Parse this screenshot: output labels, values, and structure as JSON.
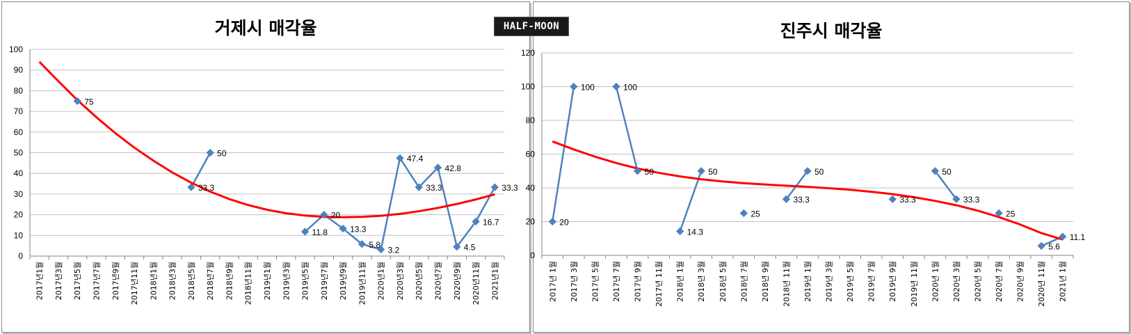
{
  "watermark": "HALF-MOON",
  "colors": {
    "series": "#4f81bd",
    "trend": "#ff0000",
    "grid": "#c0c0c0",
    "axis": "#808080"
  },
  "chart_data": [
    {
      "type": "line",
      "title": "거제시 매각율",
      "ylim": [
        0,
        100
      ],
      "yticks": [
        0,
        10,
        20,
        30,
        40,
        50,
        60,
        70,
        80,
        90,
        100
      ],
      "grid": true,
      "categories": [
        "2017년1월",
        "2017년3월",
        "2017년5월",
        "2017년7월",
        "2017년9월",
        "2017년11월",
        "2018년1월",
        "2018년3월",
        "2018년5월",
        "2018년7월",
        "2018년9월",
        "2018년11월",
        "2019년1월",
        "2019년3월",
        "2019년5월",
        "2019년7월",
        "2019년9월",
        "2019년11월",
        "2020년1월",
        "2020년3월",
        "2020년5월",
        "2020년7월",
        "2020년9월",
        "2020년11월",
        "2021년1월"
      ],
      "series": [
        {
          "values": [
            null,
            null,
            75,
            null,
            null,
            null,
            null,
            null,
            33.3,
            50,
            null,
            null,
            null,
            null,
            11.8,
            20,
            13.3,
            5.8,
            3.2,
            47.4,
            33.3,
            42.8,
            4.5,
            16.7,
            33.3
          ],
          "labels": [
            null,
            null,
            "75",
            null,
            null,
            null,
            null,
            null,
            "33.3",
            "50",
            null,
            null,
            null,
            null,
            "11.8",
            "20",
            "13.3",
            "5.8",
            "3.2",
            "47.4",
            "33.3",
            "42.8",
            "4.5",
            "16.7",
            "33.3"
          ]
        }
      ],
      "trendline": [
        94,
        84.6,
        75.5,
        67.2,
        59.5,
        52.5,
        46.2,
        40.5,
        35.5,
        31.2,
        27.6,
        24.7,
        22.4,
        20.7,
        19.6,
        19.0,
        18.8,
        19.0,
        19.5,
        20.4,
        21.7,
        23.3,
        25.2,
        27.4,
        29.9
      ]
    },
    {
      "type": "line",
      "title": "진주시 매각율",
      "ylim": [
        0,
        120
      ],
      "yticks": [
        0,
        20,
        40,
        60,
        80,
        100,
        120
      ],
      "grid": true,
      "categories": [
        "2017년 1월",
        "2017년 3월",
        "2017년 5월",
        "2017년 7월",
        "2017년 9월",
        "2017년 11월",
        "2018년 1월",
        "2018년 3월",
        "2018년 5월",
        "2018년 7월",
        "2018년 9월",
        "2018년 11월",
        "2019년 1월",
        "2019년 3월",
        "2019년 5월",
        "2019년 7월",
        "2019년 9월",
        "2019년 11월",
        "2020년 1월",
        "2020년 3월",
        "2020년 5월",
        "2020년 7월",
        "2020년 9월",
        "2020년 11월",
        "2021년 1월"
      ],
      "series": [
        {
          "values": [
            20,
            100,
            null,
            100,
            50,
            null,
            14.3,
            50,
            null,
            25,
            null,
            33.3,
            50,
            null,
            null,
            null,
            33.3,
            null,
            50,
            33.3,
            null,
            25,
            null,
            5.6,
            11.1
          ],
          "labels": [
            "20",
            "100",
            null,
            "100",
            "50",
            null,
            "14.3",
            "50",
            null,
            "25",
            null,
            "33.3",
            "50",
            null,
            null,
            null,
            "33.3",
            null,
            "50",
            "33.3",
            null,
            "25",
            null,
            "5.6",
            "11.1"
          ]
        }
      ],
      "trendline": [
        67.5,
        62.8,
        58.5,
        54.7,
        51.5,
        48.9,
        46.8,
        45.1,
        43.8,
        42.8,
        42.0,
        41.3,
        40.6,
        39.8,
        38.9,
        37.7,
        36.3,
        34.5,
        32.3,
        29.7,
        26.5,
        22.7,
        18.3,
        13.2,
        9.4
      ]
    }
  ]
}
